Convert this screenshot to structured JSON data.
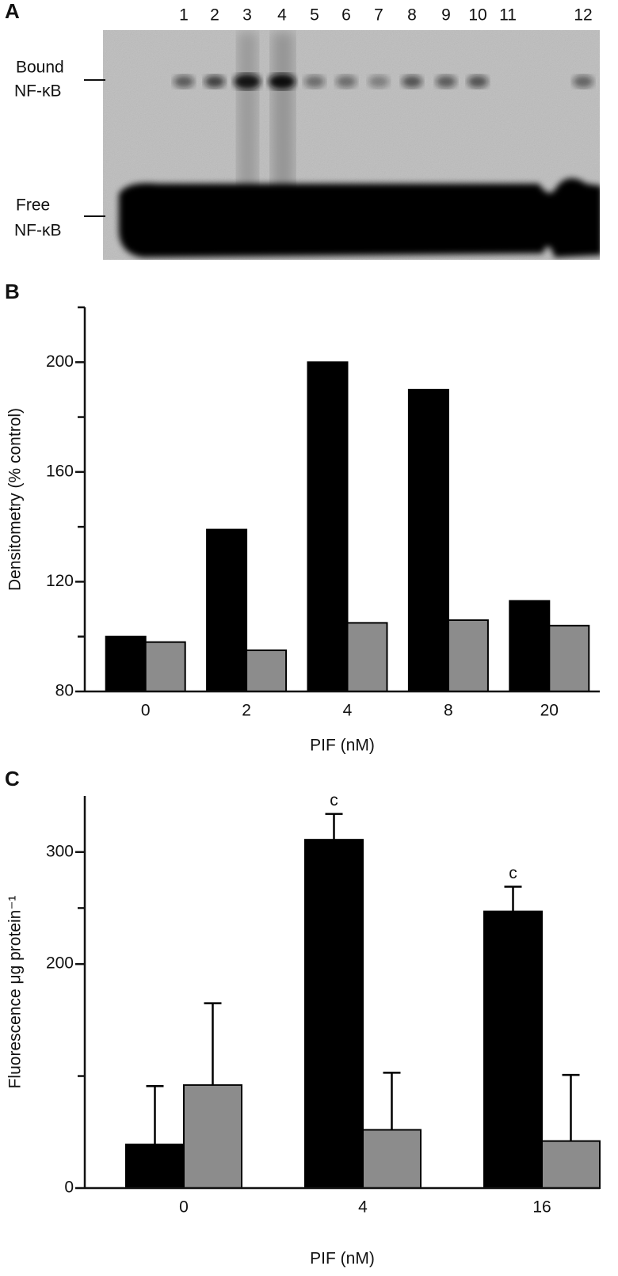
{
  "gel": {
    "label": "A",
    "lanes": [
      "1",
      "2",
      "3",
      "4",
      "5",
      "6",
      "7",
      "8",
      "9",
      "10",
      "11",
      "12"
    ],
    "bound_marker": [
      "Bound",
      "NF-κB"
    ],
    "free_marker": [
      "Free",
      "NF-κB"
    ]
  },
  "chart_data": [
    {
      "type": "bar",
      "label": "B",
      "ylabel": "Densitometry (% control)",
      "xlabel": "PIF (nM)",
      "categories": [
        "0",
        "2",
        "4",
        "8",
        "20"
      ],
      "series": [
        {
          "color": "#000000",
          "values": [
            100,
            139,
            200,
            190,
            113
          ]
        },
        {
          "color": "#8c8c8c",
          "values": [
            98,
            95,
            105,
            106,
            104
          ]
        }
      ],
      "ylim": [
        80,
        220
      ],
      "yticks": [
        80,
        120,
        160,
        200
      ],
      "yminor_ticks": [
        100,
        140,
        180,
        220
      ]
    },
    {
      "type": "bar",
      "label": "C",
      "ylabel": "Fluorescence μg protein⁻¹",
      "xlabel": "PIF (nM)",
      "categories": [
        "0",
        "4",
        "16"
      ],
      "series": [
        {
          "color": "#000000",
          "values": [
            39,
            311,
            247
          ],
          "errors": [
            52,
            23,
            22
          ]
        },
        {
          "color": "#8c8c8c",
          "values": [
            92,
            52,
            42
          ],
          "errors": [
            73,
            51,
            59
          ]
        }
      ],
      "ylim": [
        0,
        350
      ],
      "yticks": [
        0,
        200,
        300
      ],
      "yminor_ticks": [
        100,
        250
      ],
      "annotations": [
        {
          "text": "c",
          "x": "4"
        },
        {
          "text": "c",
          "x": "16"
        }
      ]
    }
  ]
}
